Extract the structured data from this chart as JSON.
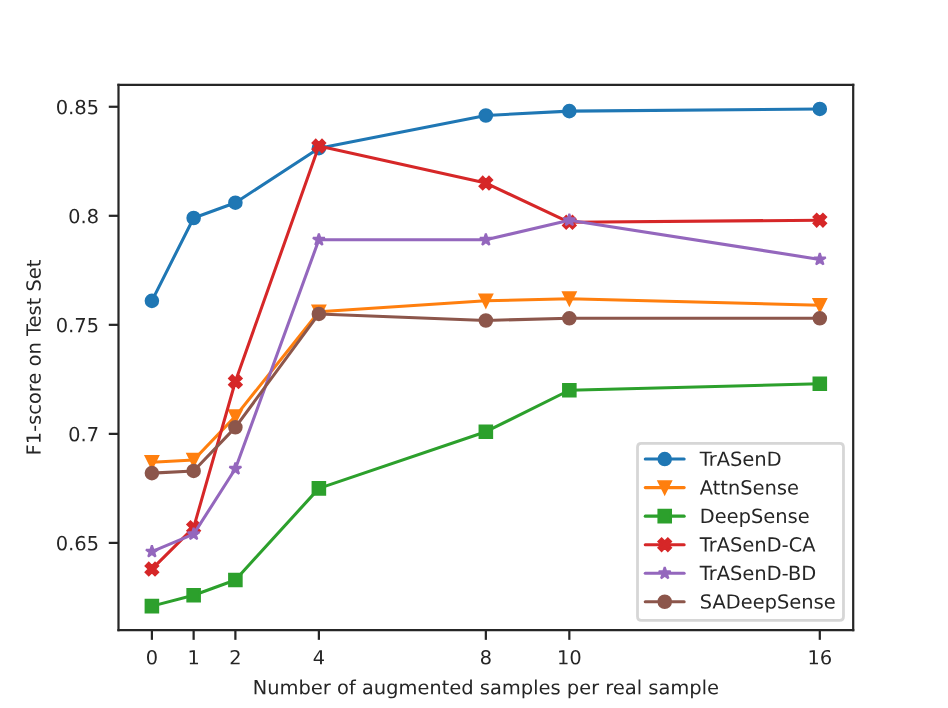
{
  "chart_data": {
    "type": "line",
    "xlabel": "Number of augmented samples per real sample",
    "ylabel": "F1-score on Test Set",
    "x": [
      0,
      1,
      2,
      4,
      8,
      10,
      16
    ],
    "xlim": [
      -0.8,
      16.8
    ],
    "xticks": [
      0,
      1,
      2,
      4,
      8,
      10,
      16
    ],
    "ylim": [
      0.61,
      0.86
    ],
    "yticks": [
      0.65,
      0.7,
      0.75,
      0.8,
      0.85
    ],
    "legend": "bottom right",
    "grid": false,
    "series": [
      {
        "name": "TrASenD",
        "color": "#1f77b4",
        "marker": "circle",
        "values": [
          0.761,
          0.799,
          0.806,
          0.831,
          0.846,
          0.848,
          0.849
        ]
      },
      {
        "name": "AttnSense",
        "color": "#ff7f0e",
        "marker": "triangle",
        "values": [
          0.687,
          0.688,
          0.708,
          0.756,
          0.761,
          0.762,
          0.759
        ]
      },
      {
        "name": "DeepSense",
        "color": "#2ca02c",
        "marker": "square",
        "values": [
          0.621,
          0.626,
          0.633,
          0.675,
          0.701,
          0.72,
          0.723
        ]
      },
      {
        "name": "TrASenD-CA",
        "color": "#d62728",
        "marker": "cross",
        "values": [
          0.638,
          0.657,
          0.724,
          0.832,
          0.815,
          0.797,
          0.798
        ]
      },
      {
        "name": "TrASenD-BD",
        "color": "#9467bd",
        "marker": "star",
        "values": [
          0.646,
          0.654,
          0.684,
          0.789,
          0.789,
          0.798,
          0.78
        ]
      },
      {
        "name": "SADeepSense",
        "color": "#8c564b",
        "marker": "circle",
        "values": [
          0.682,
          0.683,
          0.703,
          0.755,
          0.752,
          0.753,
          0.753
        ]
      }
    ]
  }
}
